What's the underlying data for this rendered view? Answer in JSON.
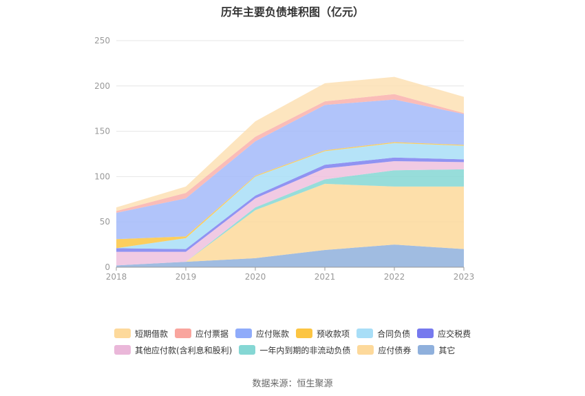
{
  "title": "历年主要负债堆积图（亿元）",
  "source": "数据来源：恒生聚源",
  "chart_data": {
    "type": "area",
    "stacked": true,
    "title": "历年主要负债堆积图（亿元）",
    "x": [
      "2018",
      "2019",
      "2020",
      "2021",
      "2022",
      "2023"
    ],
    "ylim": [
      0,
      250
    ],
    "yticks": [
      0,
      50,
      100,
      150,
      200,
      250
    ],
    "grid": true,
    "legend_position": "bottom",
    "series": [
      {
        "name": "其它",
        "color": "#8fb0dc",
        "values": [
          2,
          6,
          10,
          19,
          25,
          20
        ]
      },
      {
        "name": "应付债券",
        "color": "#fdd99b",
        "values": [
          0,
          0,
          53,
          73,
          64,
          69
        ]
      },
      {
        "name": "一年内到期的非流动负债",
        "color": "#85d7d4",
        "values": [
          0,
          0,
          3,
          5,
          18,
          19
        ]
      },
      {
        "name": "其他应付款(含利息和股利)",
        "color": "#eec1de",
        "values": [
          15,
          11,
          10,
          12,
          10,
          8
        ]
      },
      {
        "name": "应交税费",
        "color": "#7d80f0",
        "values": [
          4,
          3,
          3,
          4,
          4,
          3
        ]
      },
      {
        "name": "合同负债",
        "color": "#a8def7",
        "values": [
          0,
          12,
          21,
          15,
          16,
          15
        ]
      },
      {
        "name": "预收款项",
        "color": "#fcc542",
        "values": [
          10,
          2,
          1,
          1,
          1,
          1
        ]
      },
      {
        "name": "应付账款",
        "color": "#a3baf9",
        "values": [
          29,
          42,
          38,
          50,
          47,
          34
        ]
      },
      {
        "name": "应付票据",
        "color": "#f9b0ab",
        "values": [
          2,
          6,
          5,
          4,
          6,
          1
        ]
      },
      {
        "name": "短期借款",
        "color": "#fde0b4",
        "values": [
          4,
          7,
          17,
          20,
          19,
          18
        ]
      }
    ]
  },
  "legend": {
    "row1": [
      {
        "name": "短期借款",
        "color": "#fdd99b"
      },
      {
        "name": "应付票据",
        "color": "#f9a59e"
      },
      {
        "name": "应付账款",
        "color": "#8fabfa"
      },
      {
        "name": "预收款项",
        "color": "#fcc542"
      },
      {
        "name": "合同负债",
        "color": "#a8def7"
      },
      {
        "name": "应交税费",
        "color": "#7679ee"
      }
    ],
    "row2": [
      {
        "name": "其他应付款(含利息和股利)",
        "color": "#eab7d9"
      },
      {
        "name": "一年内到期的非流动负债",
        "color": "#85d7d4"
      },
      {
        "name": "应付债券",
        "color": "#fdd99b"
      },
      {
        "name": "其它",
        "color": "#8fb0dc"
      }
    ]
  }
}
